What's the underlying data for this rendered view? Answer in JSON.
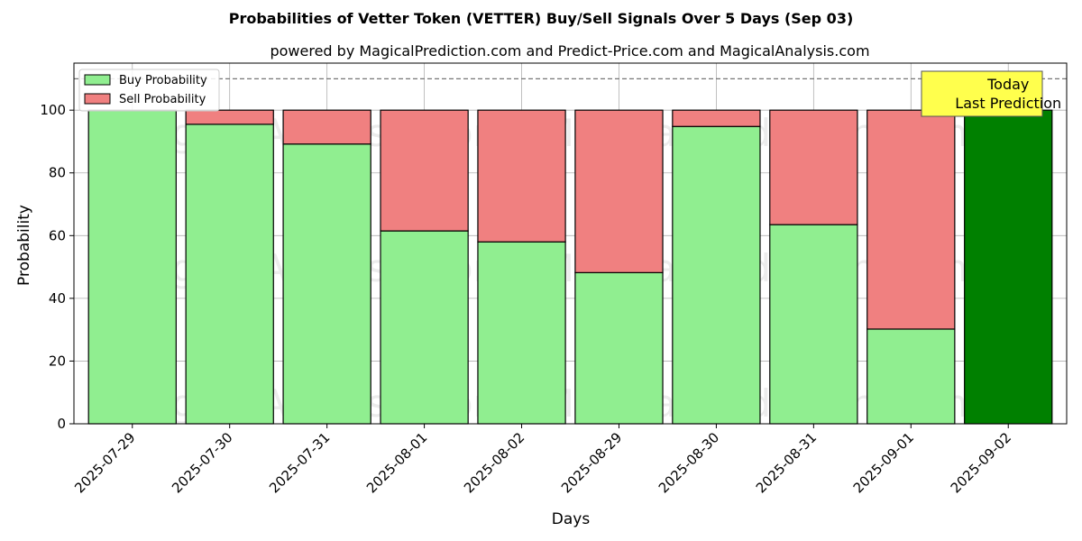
{
  "chart_data": {
    "type": "bar",
    "stacked": true,
    "title": "Probabilities of Vetter Token (VETTER) Buy/Sell Signals Over 5 Days (Sep 03)",
    "subtitle": "powered by MagicalPrediction.com and Predict-Price.com and MagicalAnalysis.com",
    "xlabel": "Days",
    "ylabel": "Probability",
    "ylim": [
      0,
      115
    ],
    "yticks": [
      0,
      20,
      40,
      60,
      80,
      100
    ],
    "grid": true,
    "legend_position": "top-left",
    "categories": [
      "2025-07-29",
      "2025-07-30",
      "2025-07-31",
      "2025-08-01",
      "2025-08-02",
      "2025-08-29",
      "2025-08-30",
      "2025-08-31",
      "2025-09-01",
      "2025-09-02"
    ],
    "series": [
      {
        "name": "Buy Probability",
        "color": "#90ee90",
        "values": [
          100,
          95.5,
          89.2,
          61.5,
          58.0,
          48.2,
          94.8,
          63.5,
          30.2,
          100
        ]
      },
      {
        "name": "Sell Probability",
        "color": "#f08080",
        "values": [
          0,
          4.5,
          10.8,
          38.5,
          42.0,
          51.8,
          5.2,
          36.5,
          69.8,
          0
        ]
      }
    ],
    "highlight": {
      "index": 9,
      "color": "#008000"
    },
    "reference_line": {
      "y": 110,
      "style": "dashed"
    },
    "annotation": {
      "lines": [
        "Today",
        "Last Prediction"
      ],
      "background": "#ffff4d"
    },
    "watermarks": [
      "MagicalAnalysis.com",
      "MagicalPrediction.com"
    ]
  }
}
